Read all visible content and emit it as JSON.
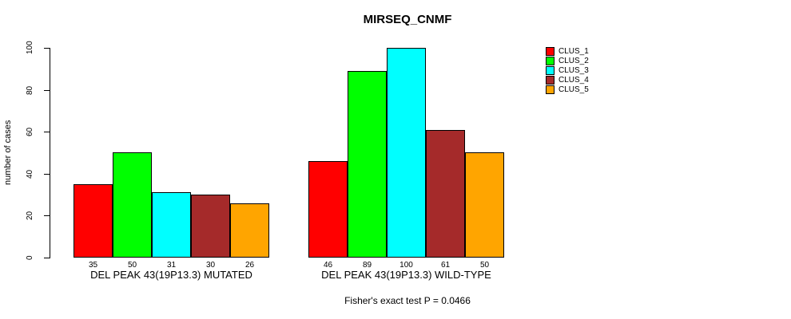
{
  "chart_data": {
    "type": "bar",
    "title": "MIRSEQ_CNMF",
    "ylabel": "number of cases",
    "ylim": [
      0,
      100
    ],
    "yticks": [
      0,
      20,
      40,
      60,
      80,
      100
    ],
    "grid": false,
    "legend_position": "right",
    "legend": [
      "CLUS_1",
      "CLUS_2",
      "CLUS_3",
      "CLUS_4",
      "CLUS_5"
    ],
    "series_colors": [
      "#ff0000",
      "#00ff00",
      "#00ffff",
      "#a52a2a",
      "#ffa500"
    ],
    "groups": [
      {
        "label": "DEL PEAK 43(19P13.3) MUTATED",
        "values": [
          35,
          50,
          31,
          30,
          26
        ]
      },
      {
        "label": "DEL PEAK 43(19P13.3) WILD-TYPE",
        "values": [
          46,
          89,
          100,
          61,
          50
        ]
      }
    ],
    "bar_value_labels": true,
    "annotation": "Fisher's exact test P = 0.0466"
  }
}
